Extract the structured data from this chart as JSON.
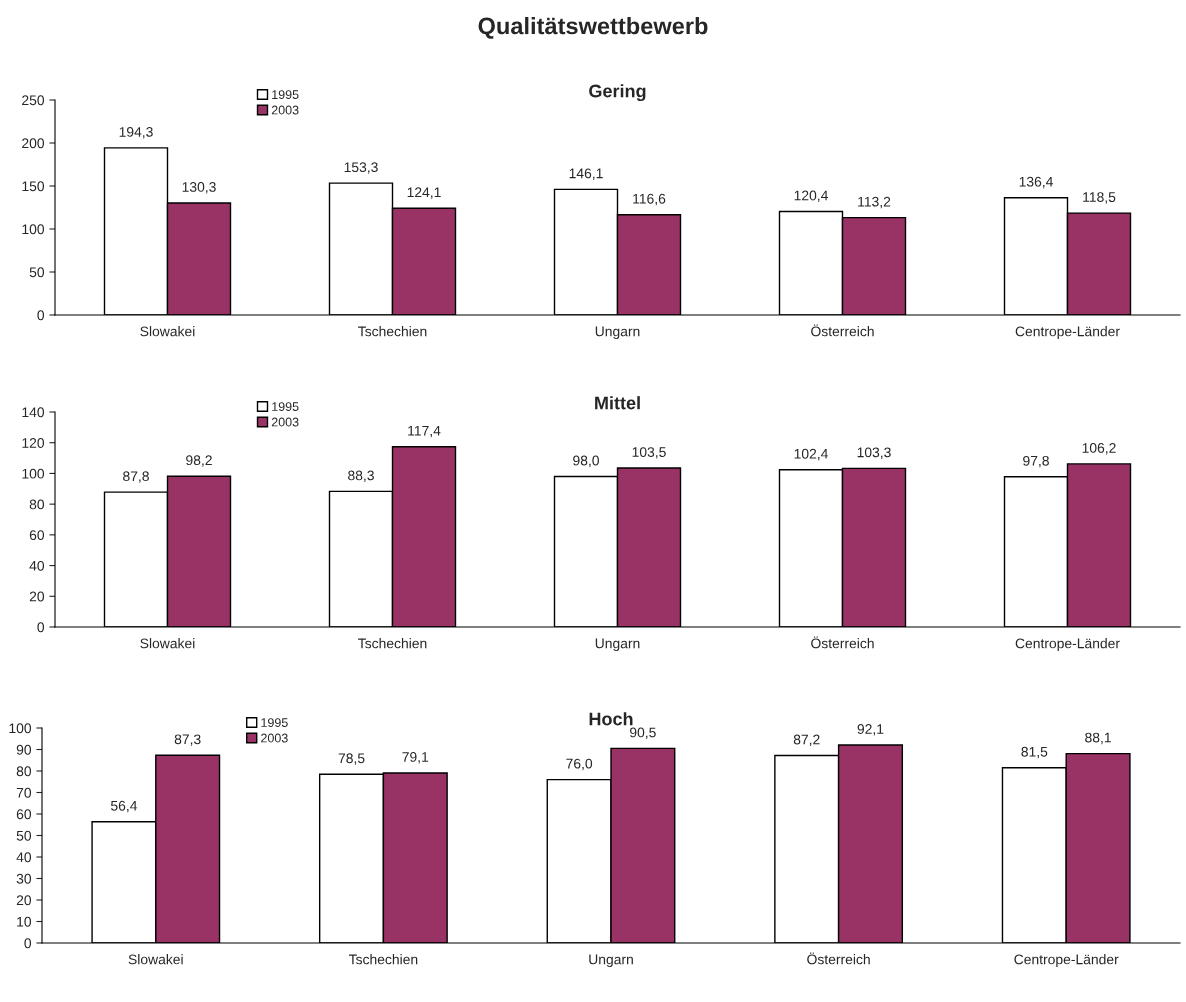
{
  "chart_data": [
    {
      "type": "bar",
      "title": "Qualitätswettbewerb",
      "subtitle": "Gering",
      "categories": [
        "Slowakei",
        "Tschechien",
        "Ungarn",
        "Österreich",
        "Centrope-Länder"
      ],
      "series": [
        {
          "name": "1995",
          "color": "#ffffff",
          "values": [
            194.3,
            153.3,
            146.1,
            120.4,
            136.4
          ],
          "value_labels": [
            "194,3",
            "153,3",
            "146,1",
            "120,4",
            "136,4"
          ]
        },
        {
          "name": "2003",
          "color": "#993366",
          "values": [
            130.3,
            124.1,
            116.6,
            113.2,
            118.5
          ],
          "value_labels": [
            "130,3",
            "124,1",
            "116,6",
            "113,2",
            "118,5"
          ]
        }
      ],
      "ylim": [
        0,
        250
      ],
      "yticks": [
        0,
        50,
        100,
        150,
        200,
        250
      ],
      "grid": false,
      "legend": "top left"
    },
    {
      "type": "bar",
      "title": "Mittel",
      "categories": [
        "Slowakei",
        "Tschechien",
        "Ungarn",
        "Österreich",
        "Centrope-Länder"
      ],
      "series": [
        {
          "name": "1995",
          "color": "#ffffff",
          "values": [
            87.8,
            88.3,
            98.0,
            102.4,
            97.8
          ],
          "value_labels": [
            "87,8",
            "88,3",
            "98,0",
            "102,4",
            "97,8"
          ]
        },
        {
          "name": "2003",
          "color": "#993366",
          "values": [
            98.2,
            117.4,
            103.5,
            103.3,
            106.2
          ],
          "value_labels": [
            "98,2",
            "117,4",
            "103,5",
            "103,3",
            "106,2"
          ]
        }
      ],
      "ylim": [
        0,
        140
      ],
      "yticks": [
        0,
        20,
        40,
        60,
        80,
        100,
        120,
        140
      ],
      "grid": false,
      "legend": "top left"
    },
    {
      "type": "bar",
      "title": "Hoch",
      "categories": [
        "Slowakei",
        "Tschechien",
        "Ungarn",
        "Österreich",
        "Centrope-Länder"
      ],
      "series": [
        {
          "name": "1995",
          "color": "#ffffff",
          "values": [
            56.4,
            78.5,
            76.0,
            87.2,
            81.5
          ],
          "value_labels": [
            "56,4",
            "78,5",
            "76,0",
            "87,2",
            "81,5"
          ]
        },
        {
          "name": "2003",
          "color": "#993366",
          "values": [
            87.3,
            79.1,
            90.5,
            92.1,
            88.1
          ],
          "value_labels": [
            "87,3",
            "79,1",
            "90,5",
            "92,1",
            "88,1"
          ]
        }
      ],
      "ylim": [
        0,
        100
      ],
      "yticks": [
        0,
        10,
        20,
        30,
        40,
        50,
        60,
        70,
        80,
        90,
        100
      ],
      "grid": false,
      "legend": "top left"
    }
  ]
}
